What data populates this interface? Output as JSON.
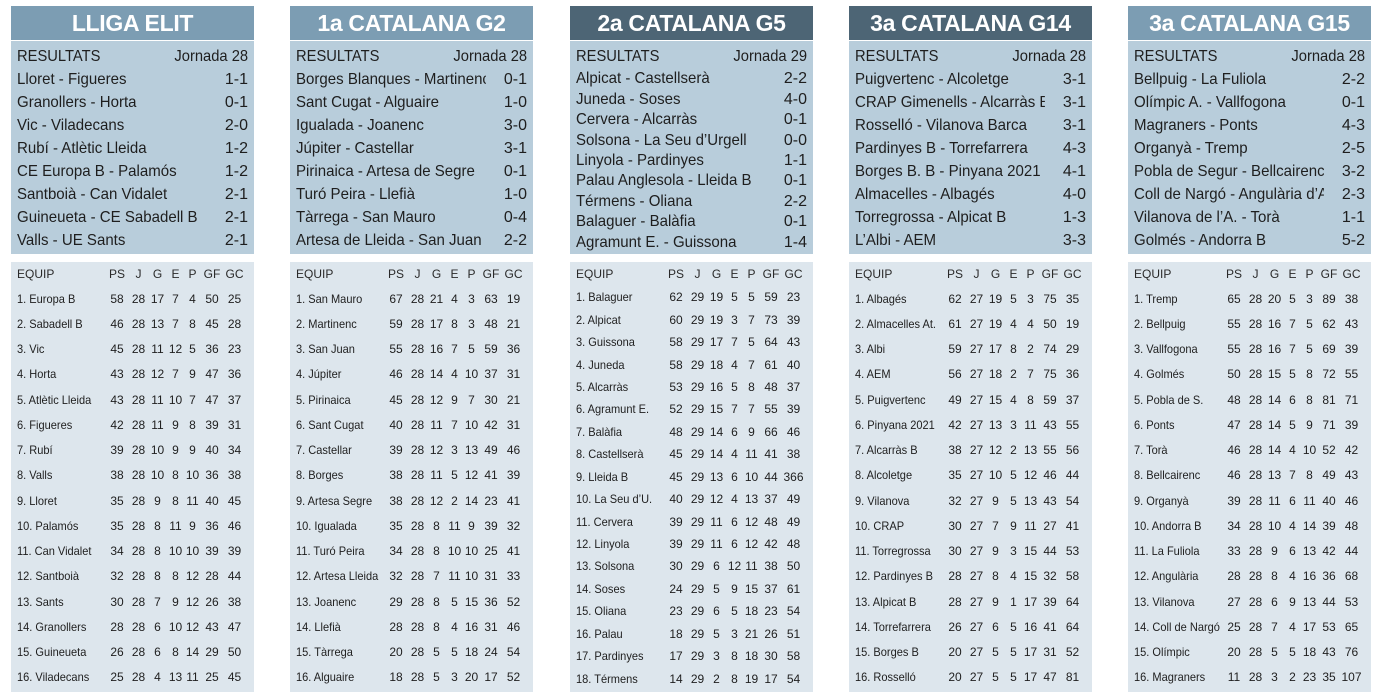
{
  "standings_headers": [
    "EQUIP",
    "PS",
    "J",
    "G",
    "E",
    "P",
    "GF",
    "GC"
  ],
  "results_label": "RESULTATS",
  "leagues": [
    {
      "title": "LLIGA ELIT",
      "jornada": "Jornada 28",
      "results": [
        {
          "teams": "Lloret - Figueres",
          "score": "1-1"
        },
        {
          "teams": "Granollers - Horta",
          "score": "0-1"
        },
        {
          "teams": "Vic - Viladecans",
          "score": "2-0"
        },
        {
          "teams": "Rubí - Atlètic Lleida",
          "score": "1-2"
        },
        {
          "teams": "CE Europa B - Palamós",
          "score": "1-2"
        },
        {
          "teams": "Santboià - Can Vidalet",
          "score": "2-1"
        },
        {
          "teams": "Guineueta - CE Sabadell B",
          "score": "2-1"
        },
        {
          "teams": "Valls - UE Sants",
          "score": "2-1"
        }
      ],
      "standings": [
        [
          "1. Europa B",
          "58",
          "28",
          "17",
          "7",
          "4",
          "50",
          "25"
        ],
        [
          "2. Sabadell B",
          "46",
          "28",
          "13",
          "7",
          "8",
          "45",
          "28"
        ],
        [
          "3. Vic",
          "45",
          "28",
          "11",
          "12",
          "5",
          "36",
          "23"
        ],
        [
          "4. Horta",
          "43",
          "28",
          "12",
          "7",
          "9",
          "47",
          "36"
        ],
        [
          "5. Atlètic Lleida",
          "43",
          "28",
          "11",
          "10",
          "7",
          "47",
          "37"
        ],
        [
          "6. Figueres",
          "42",
          "28",
          "11",
          "9",
          "8",
          "39",
          "31"
        ],
        [
          "7. Rubí",
          "39",
          "28",
          "10",
          "9",
          "9",
          "40",
          "34"
        ],
        [
          "8. Valls",
          "38",
          "28",
          "10",
          "8",
          "10",
          "36",
          "38"
        ],
        [
          "9. Lloret",
          "35",
          "28",
          "9",
          "8",
          "11",
          "40",
          "45"
        ],
        [
          "10. Palamós",
          "35",
          "28",
          "8",
          "11",
          "9",
          "36",
          "46"
        ],
        [
          "11. Can Vidalet",
          "34",
          "28",
          "8",
          "10",
          "10",
          "39",
          "39"
        ],
        [
          "12. Santboià",
          "32",
          "28",
          "8",
          "8",
          "12",
          "28",
          "44"
        ],
        [
          "13. Sants",
          "30",
          "28",
          "7",
          "9",
          "12",
          "26",
          "38"
        ],
        [
          "14. Granollers",
          "28",
          "28",
          "6",
          "10",
          "12",
          "43",
          "47"
        ],
        [
          "15. Guineueta",
          "26",
          "28",
          "6",
          "8",
          "14",
          "29",
          "50"
        ],
        [
          "16. Viladecans",
          "25",
          "28",
          "4",
          "13",
          "11",
          "25",
          "45"
        ]
      ]
    },
    {
      "title": "1a CATALANA G2",
      "jornada": "Jornada 28",
      "results": [
        {
          "teams": "Borges Blanques - Martinenc",
          "score": "0-1"
        },
        {
          "teams": "Sant Cugat - Alguaire",
          "score": "1-0"
        },
        {
          "teams": "Igualada - Joanenc",
          "score": "3-0"
        },
        {
          "teams": "Júpiter - Castellar",
          "score": "3-1"
        },
        {
          "teams": "Pirinaica - Artesa de Segre",
          "score": "0-1"
        },
        {
          "teams": "Turó Peira - Llefià",
          "score": "1-0"
        },
        {
          "teams": "Tàrrega - San Mauro",
          "score": "0-4"
        },
        {
          "teams": "Artesa de Lleida - San Juan",
          "score": "2-2"
        }
      ],
      "standings": [
        [
          "1. San Mauro",
          "67",
          "28",
          "21",
          "4",
          "3",
          "63",
          "19"
        ],
        [
          "2. Martinenc",
          "59",
          "28",
          "17",
          "8",
          "3",
          "48",
          "21"
        ],
        [
          "3. San Juan",
          "55",
          "28",
          "16",
          "7",
          "5",
          "59",
          "36"
        ],
        [
          "4. Júpiter",
          "46",
          "28",
          "14",
          "4",
          "10",
          "37",
          "31"
        ],
        [
          "5. Pirinaica",
          "45",
          "28",
          "12",
          "9",
          "7",
          "30",
          "21"
        ],
        [
          "6. Sant Cugat",
          "40",
          "28",
          "11",
          "7",
          "10",
          "42",
          "31"
        ],
        [
          "7. Castellar",
          "39",
          "28",
          "12",
          "3",
          "13",
          "49",
          "46"
        ],
        [
          "8. Borges",
          "38",
          "28",
          "11",
          "5",
          "12",
          "41",
          "39"
        ],
        [
          "9. Artesa Segre",
          "38",
          "28",
          "12",
          "2",
          "14",
          "23",
          "41"
        ],
        [
          "10. Igualada",
          "35",
          "28",
          "8",
          "11",
          "9",
          "39",
          "32"
        ],
        [
          "11. Turó Peira",
          "34",
          "28",
          "8",
          "10",
          "10",
          "25",
          "41"
        ],
        [
          "12. Artesa Lleida",
          "32",
          "28",
          "7",
          "11",
          "10",
          "31",
          "33"
        ],
        [
          "13. Joanenc",
          "29",
          "28",
          "8",
          "5",
          "15",
          "36",
          "52"
        ],
        [
          "14. Llefià",
          "28",
          "28",
          "8",
          "4",
          "16",
          "31",
          "46"
        ],
        [
          "15. Tàrrega",
          "20",
          "28",
          "5",
          "5",
          "18",
          "24",
          "54"
        ],
        [
          "16. Alguaire",
          "18",
          "28",
          "5",
          "3",
          "20",
          "17",
          "52"
        ]
      ]
    },
    {
      "title": "2a CATALANA G5",
      "jornada": "Jornada 29",
      "results": [
        {
          "teams": "Alpicat - Castellserà",
          "score": "2-2"
        },
        {
          "teams": "Juneda - Soses",
          "score": "4-0"
        },
        {
          "teams": "Cervera - Alcarràs",
          "score": "0-1"
        },
        {
          "teams": "Solsona - La Seu d’Urgell",
          "score": "0-0"
        },
        {
          "teams": "Linyola - Pardinyes",
          "score": "1-1"
        },
        {
          "teams": "Palau Anglesola - Lleida B",
          "score": "0-1"
        },
        {
          "teams": "Térmens - Oliana",
          "score": "2-2"
        },
        {
          "teams": "Balaguer - Balàfia",
          "score": "0-1"
        },
        {
          "teams": "Agramunt E. - Guissona",
          "score": "1-4"
        }
      ],
      "standings": [
        [
          "1. Balaguer",
          "62",
          "29",
          "19",
          "5",
          "5",
          "59",
          "23"
        ],
        [
          "2. Alpicat",
          "60",
          "29",
          "19",
          "3",
          "7",
          "73",
          "39"
        ],
        [
          "3. Guissona",
          "58",
          "29",
          "17",
          "7",
          "5",
          "64",
          "43"
        ],
        [
          "4. Juneda",
          "58",
          "29",
          "18",
          "4",
          "7",
          "61",
          "40"
        ],
        [
          "5. Alcarràs",
          "53",
          "29",
          "16",
          "5",
          "8",
          "48",
          "37"
        ],
        [
          "6. Agramunt E.",
          "52",
          "29",
          "15",
          "7",
          "7",
          "55",
          "39"
        ],
        [
          "7. Balàfia",
          "48",
          "29",
          "14",
          "6",
          "9",
          "66",
          "46"
        ],
        [
          "8. Castellserà",
          "45",
          "29",
          "14",
          "4",
          "11",
          "41",
          "38"
        ],
        [
          "9. Lleida B",
          "45",
          "29",
          "13",
          "6",
          "10",
          "44",
          "366"
        ],
        [
          "10. La Seu d’U.",
          "40",
          "29",
          "12",
          "4",
          "13",
          "37",
          "49"
        ],
        [
          "11. Cervera",
          "39",
          "29",
          "11",
          "6",
          "12",
          "48",
          "49"
        ],
        [
          "12. Linyola",
          "39",
          "29",
          "11",
          "6",
          "12",
          "42",
          "48"
        ],
        [
          "13. Solsona",
          "30",
          "29",
          "6",
          "12",
          "11",
          "38",
          "50"
        ],
        [
          "14. Soses",
          "24",
          "29",
          "5",
          "9",
          "15",
          "37",
          "61"
        ],
        [
          "15. Oliana",
          "23",
          "29",
          "6",
          "5",
          "18",
          "23",
          "54"
        ],
        [
          "16. Palau",
          "18",
          "29",
          "5",
          "3",
          "21",
          "26",
          "51"
        ],
        [
          "17. Pardinyes",
          "17",
          "29",
          "3",
          "8",
          "18",
          "30",
          "58"
        ],
        [
          "18. Térmens",
          "14",
          "29",
          "2",
          "8",
          "19",
          "17",
          "54"
        ]
      ]
    },
    {
      "title": "3a CATALANA G14",
      "jornada": "Jornada 28",
      "results": [
        {
          "teams": "Puigvertenc - Alcoletge",
          "score": "3-1"
        },
        {
          "teams": "CRAP Gimenells - Alcarràs B",
          "score": "3-1"
        },
        {
          "teams": "Rosselló - Vilanova Barca",
          "score": "3-1"
        },
        {
          "teams": "Pardinyes B - Torrefarrera",
          "score": "4-3"
        },
        {
          "teams": "Borges B. B - Pinyana 2021",
          "score": "4-1"
        },
        {
          "teams": "Almacelles - Albagés",
          "score": "4-0"
        },
        {
          "teams": "Torregrossa - Alpicat B",
          "score": "1-3"
        },
        {
          "teams": "L’Albi - AEM",
          "score": "3-3"
        }
      ],
      "standings": [
        [
          "1. Albagés",
          "62",
          "27",
          "19",
          "5",
          "3",
          "75",
          "35"
        ],
        [
          "2. Almacelles At.",
          "61",
          "27",
          "19",
          "4",
          "4",
          "50",
          "19"
        ],
        [
          "3. Albi",
          "59",
          "27",
          "17",
          "8",
          "2",
          "74",
          "29"
        ],
        [
          "4. AEM",
          "56",
          "27",
          "18",
          "2",
          "7",
          "75",
          "36"
        ],
        [
          "5. Puigvertenc",
          "49",
          "27",
          "15",
          "4",
          "8",
          "59",
          "37"
        ],
        [
          "6. Pinyana 2021",
          "42",
          "27",
          "13",
          "3",
          "11",
          "43",
          "55"
        ],
        [
          "7. Alcarràs B",
          "38",
          "27",
          "12",
          "2",
          "13",
          "55",
          "56"
        ],
        [
          "8. Alcoletge",
          "35",
          "27",
          "10",
          "5",
          "12",
          "46",
          "44"
        ],
        [
          "9. Vilanova",
          "32",
          "27",
          "9",
          "5",
          "13",
          "43",
          "54"
        ],
        [
          "10. CRAP",
          "30",
          "27",
          "7",
          "9",
          "11",
          "27",
          "41"
        ],
        [
          "11. Torregrossa",
          "30",
          "27",
          "9",
          "3",
          "15",
          "44",
          "53"
        ],
        [
          "12. Pardinyes B",
          "28",
          "27",
          "8",
          "4",
          "15",
          "32",
          "58"
        ],
        [
          "13. Alpicat B",
          "28",
          "27",
          "9",
          "1",
          "17",
          "39",
          "64"
        ],
        [
          "14. Torrefarrera",
          "26",
          "27",
          "6",
          "5",
          "16",
          "41",
          "64"
        ],
        [
          "15. Borges B",
          "20",
          "27",
          "5",
          "5",
          "17",
          "31",
          "52"
        ],
        [
          "16. Rosselló",
          "20",
          "27",
          "5",
          "5",
          "17",
          "47",
          "81"
        ]
      ]
    },
    {
      "title": "3a CATALANA G15",
      "jornada": "Jornada 28",
      "results": [
        {
          "teams": "Bellpuig - La Fuliola",
          "score": "2-2"
        },
        {
          "teams": "Olímpic A. - Vallfogona",
          "score": "0-1"
        },
        {
          "teams": "Magraners - Ponts",
          "score": "4-3"
        },
        {
          "teams": "Organyà - Tremp",
          "score": "2-5"
        },
        {
          "teams": "Pobla de Segur - Bellcairenc",
          "score": "3-2"
        },
        {
          "teams": "Coll de Nargó - Angulària d’A.",
          "score": "2-3"
        },
        {
          "teams": "Vilanova de l’A. - Torà",
          "score": "1-1"
        },
        {
          "teams": "Golmés - Andorra B",
          "score": "5-2"
        }
      ],
      "standings": [
        [
          "1. Tremp",
          "65",
          "28",
          "20",
          "5",
          "3",
          "89",
          "38"
        ],
        [
          "2. Bellpuig",
          "55",
          "28",
          "16",
          "7",
          "5",
          "62",
          "43"
        ],
        [
          "3. Vallfogona",
          "55",
          "28",
          "16",
          "7",
          "5",
          "69",
          "39"
        ],
        [
          "4. Golmés",
          "50",
          "28",
          "15",
          "5",
          "8",
          "72",
          "55"
        ],
        [
          "5. Pobla de S.",
          "48",
          "28",
          "14",
          "6",
          "8",
          "81",
          "71"
        ],
        [
          "6. Ponts",
          "47",
          "28",
          "14",
          "5",
          "9",
          "71",
          "39"
        ],
        [
          "7. Torà",
          "46",
          "28",
          "14",
          "4",
          "10",
          "52",
          "42"
        ],
        [
          "8. Bellcairenc",
          "46",
          "28",
          "13",
          "7",
          "8",
          "49",
          "43"
        ],
        [
          "9. Organyà",
          "39",
          "28",
          "11",
          "6",
          "11",
          "40",
          "46"
        ],
        [
          "10. Andorra B",
          "34",
          "28",
          "10",
          "4",
          "14",
          "39",
          "48"
        ],
        [
          "11. La Fuliola",
          "33",
          "28",
          "9",
          "6",
          "13",
          "42",
          "44"
        ],
        [
          "12. Angulària",
          "28",
          "28",
          "8",
          "4",
          "16",
          "36",
          "68"
        ],
        [
          "13. Vilanova",
          "27",
          "28",
          "6",
          "9",
          "13",
          "44",
          "53"
        ],
        [
          "14. Coll de Nargó",
          "25",
          "28",
          "7",
          "4",
          "17",
          "53",
          "65"
        ],
        [
          "15. Olímpic",
          "20",
          "28",
          "5",
          "5",
          "18",
          "43",
          "76"
        ],
        [
          "16. Magraners",
          "11",
          "28",
          "3",
          "2",
          "23",
          "35",
          "107"
        ]
      ]
    }
  ],
  "colors": {
    "title_light": "#7c9db3",
    "title_dark": "#4d6575",
    "results_bg": "#b8cddb",
    "standings_bg": "#dde6ed"
  }
}
